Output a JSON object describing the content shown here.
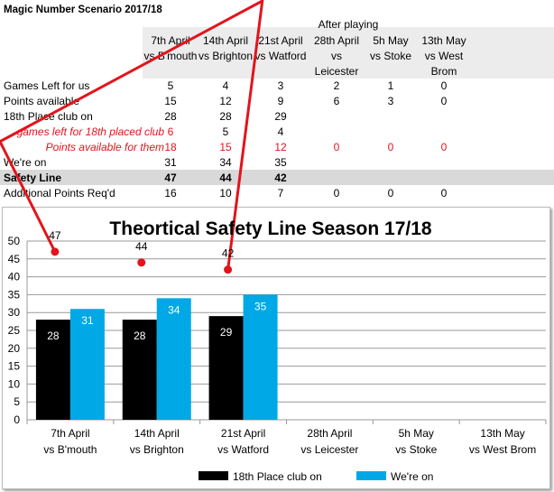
{
  "table": {
    "title": "Magic Number Scenario 2017/18",
    "after_playing": "After playing",
    "columns": [
      [
        "7th April",
        "vs B'mouth"
      ],
      [
        "14th April",
        "vs Brighton"
      ],
      [
        "21st April",
        "vs Watford"
      ],
      [
        "28th April",
        "vs Leicester"
      ],
      [
        "5h May",
        "vs Stoke"
      ],
      [
        "13th May",
        "vs West",
        "Brom"
      ]
    ],
    "rows": [
      {
        "label": "Games Left for us",
        "style": "normal",
        "values": [
          "5",
          "4",
          "3",
          "2",
          "1",
          "0"
        ]
      },
      {
        "label": "Points available",
        "style": "normal",
        "values": [
          "15",
          "12",
          "9",
          "6",
          "3",
          "0"
        ]
      },
      {
        "label": "18th Place club on",
        "style": "normal",
        "values": [
          "28",
          "28",
          "29",
          "",
          "",
          ""
        ]
      },
      {
        "label": "games left for 18th placed club",
        "style": "red",
        "values": [
          "6",
          "5",
          "4",
          "",
          "",
          ""
        ],
        "value_red": [
          true,
          false,
          false,
          false,
          false,
          false
        ]
      },
      {
        "label": "Points available for them",
        "style": "red",
        "values": [
          "18",
          "15",
          "12",
          "0",
          "0",
          "0"
        ],
        "value_red": [
          true,
          true,
          true,
          true,
          true,
          true
        ]
      },
      {
        "label": "We're on",
        "style": "normal",
        "values": [
          "31",
          "34",
          "35",
          "",
          "",
          ""
        ]
      },
      {
        "label": "Safety Line",
        "style": "bold",
        "values": [
          "47",
          "44",
          "42",
          "",
          "",
          ""
        ]
      },
      {
        "label": "Additional Points Req'd",
        "style": "normal",
        "values": [
          "16",
          "10",
          "7",
          "0",
          "0",
          "0"
        ]
      }
    ]
  },
  "chart_data": {
    "type": "bar",
    "title": "Theortical Safety Line Season 17/18",
    "categories": [
      [
        "7th April",
        "vs B'mouth"
      ],
      [
        "14th April",
        "vs Brighton"
      ],
      [
        "21st April",
        "vs Watford"
      ],
      [
        "28th April",
        "vs Leicester"
      ],
      [
        "5h May",
        "vs Stoke"
      ],
      [
        "13th May",
        "vs West Brom"
      ]
    ],
    "series": [
      {
        "name": "18th Place club on",
        "type": "bar",
        "color": "#000000",
        "values": [
          28,
          28,
          29,
          null,
          null,
          null
        ]
      },
      {
        "name": "We're on",
        "type": "bar",
        "color": "#00a8e6",
        "values": [
          31,
          34,
          35,
          null,
          null,
          null
        ]
      },
      {
        "name": "Safety Line",
        "type": "line",
        "color": "#e2141c",
        "values": [
          47,
          44,
          42,
          null,
          null,
          null
        ],
        "show_in_legend": false
      }
    ],
    "ylim": [
      0,
      50
    ],
    "yticks": [
      "0",
      "5",
      "10",
      "15",
      "20",
      "25",
      "30",
      "35",
      "40",
      "45",
      "50"
    ],
    "grid": true,
    "legend": "bottom"
  }
}
